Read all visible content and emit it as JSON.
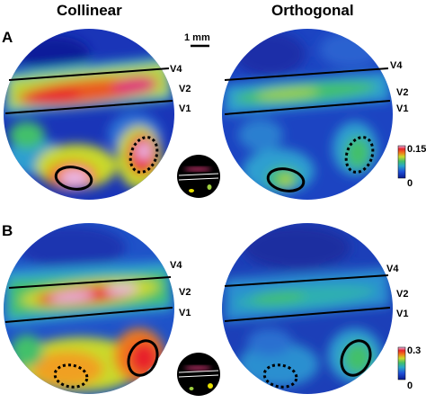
{
  "figure": {
    "panels": [
      "A",
      "B"
    ],
    "columns": [
      "Collinear",
      "Orthogonal"
    ],
    "areas": {
      "v4": "V4",
      "v2": "V2",
      "v1": "V1"
    },
    "scale_bar": "1 mm",
    "colorbars": [
      {
        "max": "0.15",
        "min": "0"
      },
      {
        "max": "0.3",
        "min": "0"
      }
    ],
    "colormap": [
      "#0a1a8c",
      "#1f4fd8",
      "#29a7c9",
      "#43c06a",
      "#c9d92a",
      "#f07a1a",
      "#e8242a",
      "#e8b8e8"
    ]
  }
}
